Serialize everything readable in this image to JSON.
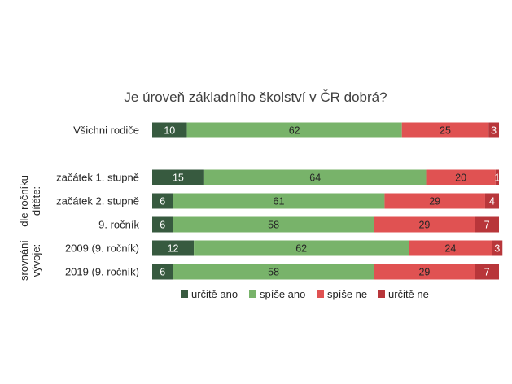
{
  "chart_data": {
    "type": "bar",
    "stacked": "percent",
    "orientation": "horizontal",
    "title": "Je úroveň základního školství v ČR dobrá?",
    "categories": [
      "Všichni rodiče",
      "začátek 1. stupně",
      "začátek 2. stupně",
      "9. ročník",
      "2009 (9. ročník)",
      "2019 (9. ročník)"
    ],
    "groups": [
      {
        "label": "dle ročníku dítěte:",
        "categories": [
          "začátek 1. stupně",
          "začátek 2. stupně",
          "9. ročník"
        ]
      },
      {
        "label": "srovnání vývoje:",
        "categories": [
          "2009 (9. ročník)",
          "2019 (9. ročník)"
        ]
      }
    ],
    "series": [
      {
        "name": "určitě ano",
        "color": "#375a3f",
        "values": [
          10,
          15,
          6,
          6,
          12,
          6
        ]
      },
      {
        "name": "spíše ano",
        "color": "#78b36a",
        "values": [
          62,
          64,
          61,
          58,
          62,
          58
        ]
      },
      {
        "name": "spíše ne",
        "color": "#e05252",
        "values": [
          25,
          20,
          29,
          29,
          24,
          29
        ]
      },
      {
        "name": "určitě ne",
        "color": "#b8363a",
        "values": [
          3,
          1,
          4,
          7,
          3,
          7
        ]
      }
    ],
    "xlim": [
      0,
      100
    ],
    "grid": false,
    "legend": "bottom"
  }
}
